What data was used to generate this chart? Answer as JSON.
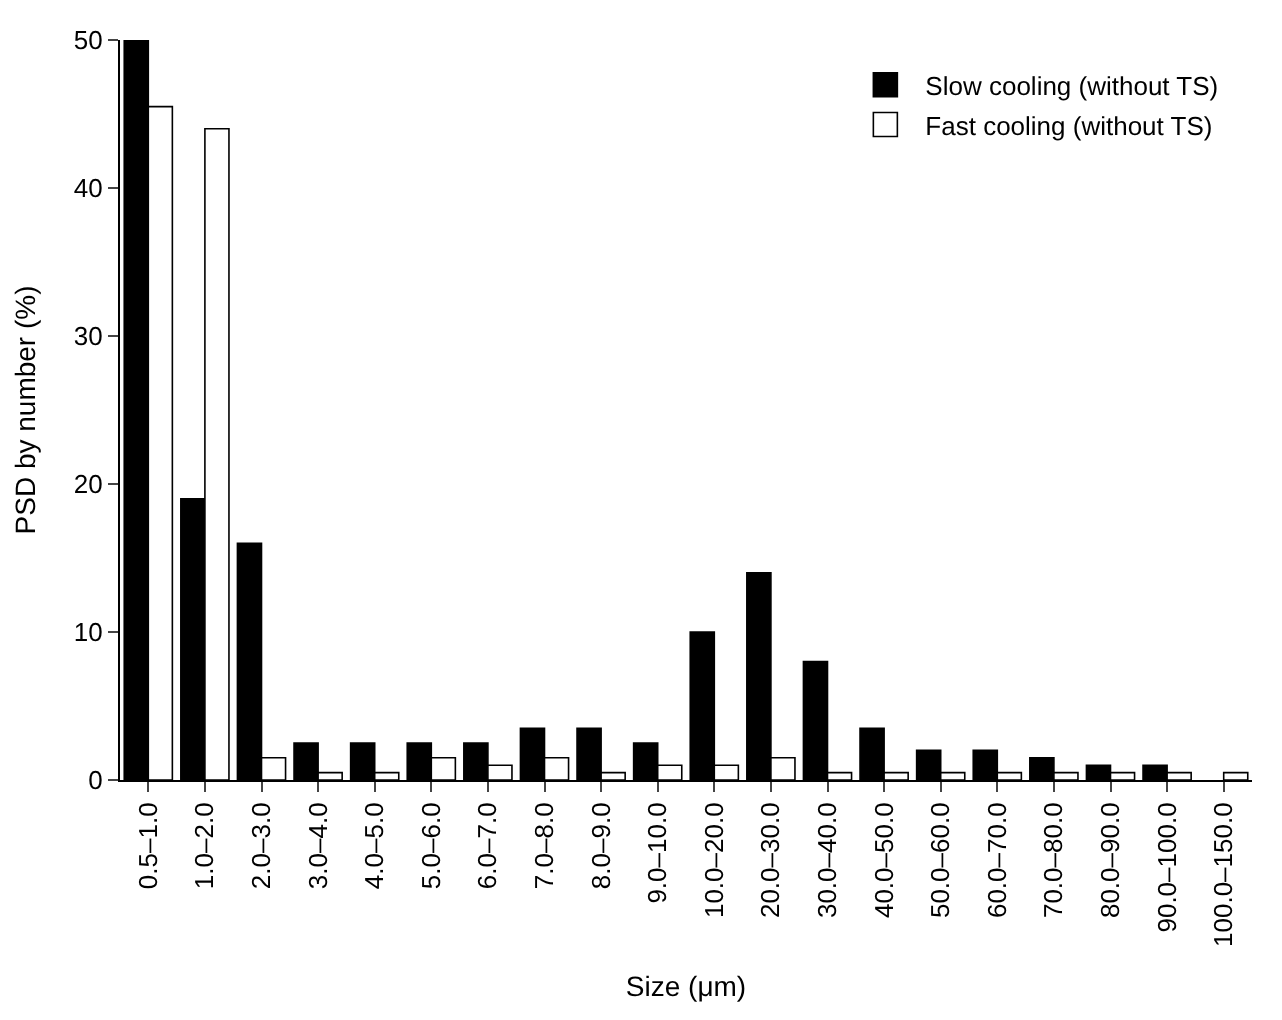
{
  "chart_data": {
    "type": "bar",
    "xlabel": "Size (μm)",
    "ylabel": "PSD by number (%)",
    "categories": [
      "0.5–1.0",
      "1.0–2.0",
      "2.0–3.0",
      "3.0–4.0",
      "4.0–5.0",
      "5.0–6.0",
      "6.0–7.0",
      "7.0–8.0",
      "8.0–9.0",
      "9.0–10.0",
      "10.0–20.0",
      "20.0–30.0",
      "30.0–40.0",
      "40.0–50.0",
      "50.0–60.0",
      "60.0–70.0",
      "70.0–80.0",
      "80.0–90.0",
      "90.0–100.0",
      "100.0–150.0"
    ],
    "series": [
      {
        "name": "Slow cooling (without TS)",
        "color": "#000000",
        "values": [
          50,
          19,
          16,
          2.5,
          2.5,
          2.5,
          2.5,
          3.5,
          3.5,
          2.5,
          10,
          14,
          8,
          3.5,
          2,
          2,
          1.5,
          1,
          1,
          null
        ]
      },
      {
        "name": "Fast cooling (without TS)",
        "color": "#ffffff",
        "values": [
          45.5,
          44,
          1.5,
          0.5,
          0.5,
          1.5,
          1,
          1.5,
          0.5,
          1,
          1,
          1.5,
          0.5,
          0.5,
          0.5,
          0.5,
          0.5,
          0.5,
          0.5,
          0.5
        ]
      }
    ],
    "ylim": [
      0,
      50
    ],
    "yticks": [
      0,
      10,
      20,
      30,
      40,
      50
    ],
    "legend": "top right"
  }
}
